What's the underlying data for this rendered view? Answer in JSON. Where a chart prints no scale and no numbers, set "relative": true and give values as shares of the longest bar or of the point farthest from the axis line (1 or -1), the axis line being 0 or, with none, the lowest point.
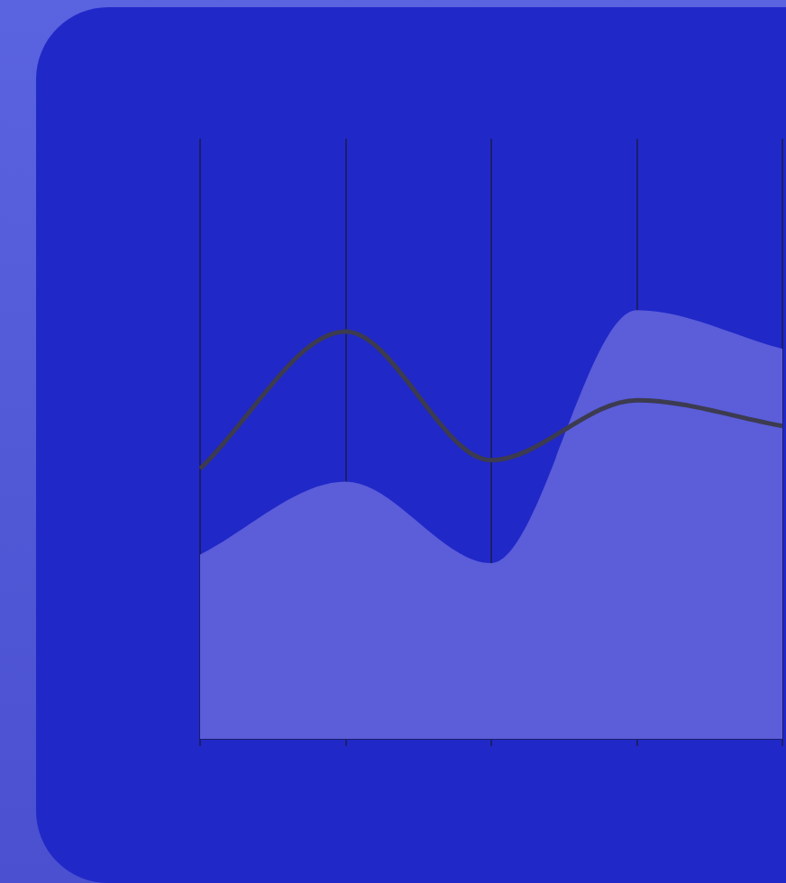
{
  "chart_data": {
    "type": "area",
    "categories": [
      null,
      null,
      null,
      null,
      null
    ],
    "relative": true,
    "grid": "x",
    "marker": "none",
    "legend": false,
    "series": [
      {
        "type": "area",
        "color": "#5b5dd9",
        "values": [
          0.43,
          0.6,
          0.41,
          1.0,
          0.91
        ]
      },
      {
        "type": "line",
        "color": "#3c3b50",
        "values": [
          0.63,
          0.95,
          0.65,
          0.79,
          0.73
        ]
      }
    ]
  }
}
